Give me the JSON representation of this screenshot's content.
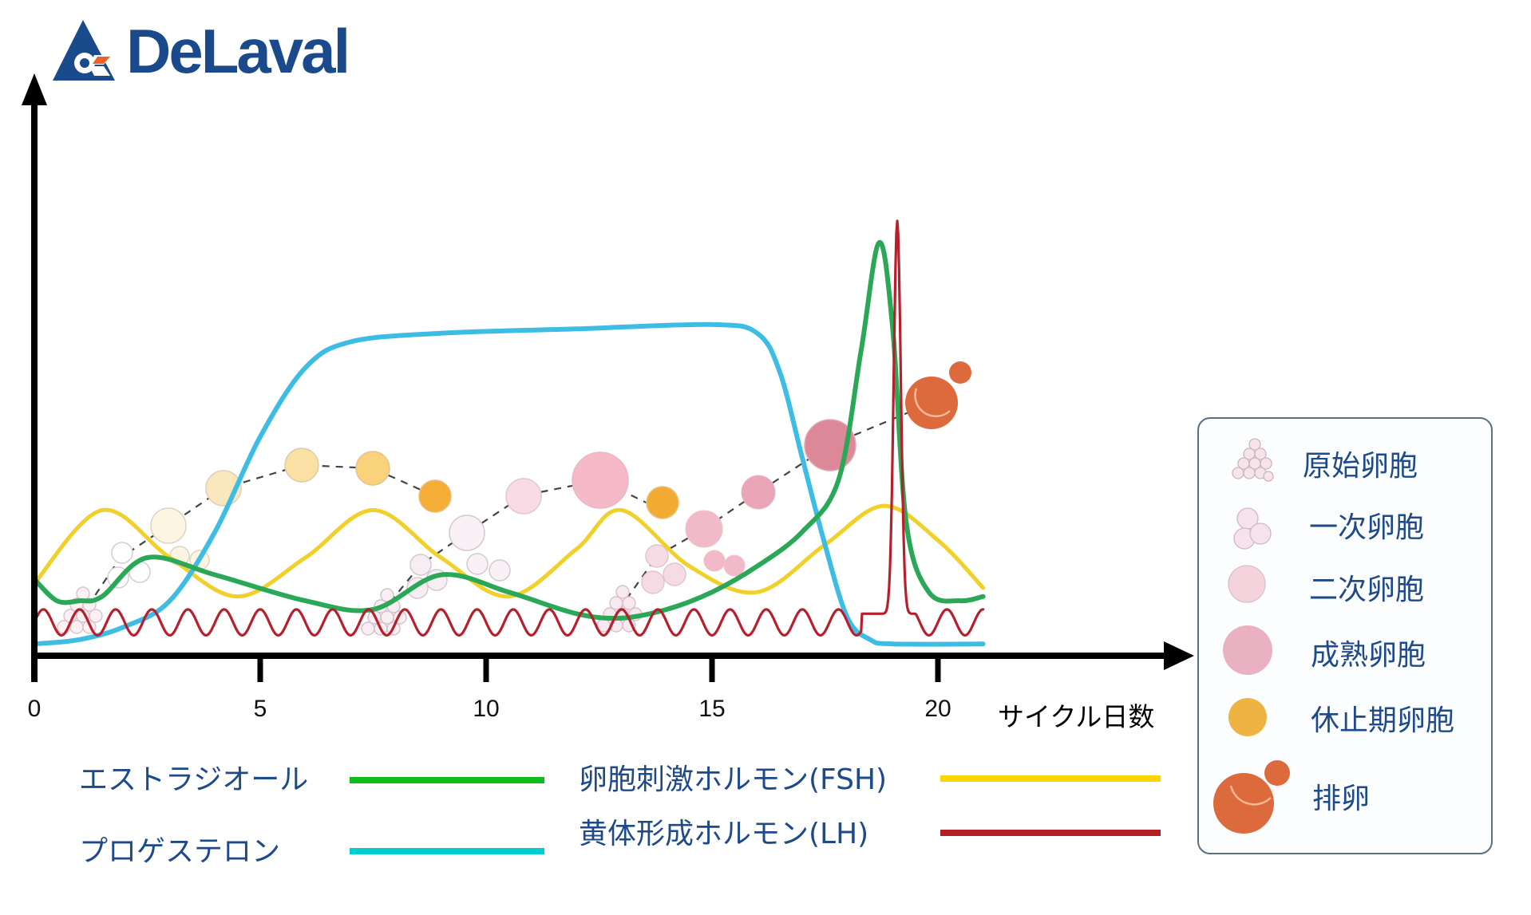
{
  "logo": {
    "text": "DeLaval",
    "brand_color": "#1b4a8c",
    "accent_color": "#e8642a"
  },
  "chart_data": {
    "type": "line",
    "title": "",
    "xlabel": "サイクル日数",
    "ylabel": "",
    "xlim": [
      0,
      21
    ],
    "x_ticks": [
      0,
      5,
      10,
      15,
      20
    ],
    "x_tick_labels": [
      "0",
      "5",
      "10",
      "15",
      "20"
    ],
    "grid": false,
    "legend_position": "bottom",
    "series": [
      {
        "name": "エストラジオール",
        "color": "#14a84a",
        "description": "Low baseline with follicular-wave bumps, rising after day 15 to sharp peak near day 18.7, then falling",
        "x": [
          0,
          0.5,
          1.0,
          1.5,
          2.5,
          4,
          6,
          7.5,
          9,
          10.5,
          12,
          13,
          14,
          15,
          16,
          17,
          17.8,
          18.3,
          18.7,
          19.0,
          19.3,
          19.8,
          20.5,
          21
        ],
        "y": [
          0.17,
          0.12,
          0.12,
          0.13,
          0.22,
          0.18,
          0.12,
          0.1,
          0.18,
          0.14,
          0.09,
          0.08,
          0.1,
          0.14,
          0.2,
          0.28,
          0.4,
          0.7,
          0.95,
          0.75,
          0.3,
          0.14,
          0.12,
          0.13
        ]
      },
      {
        "name": "プロゲステロン",
        "color": "#37b8e0",
        "description": "Sigmoid rise from day 1 to plateau ~day 7, flat until ~day 16, drops to baseline by day 18.5",
        "x": [
          0,
          1,
          2,
          3,
          4,
          5,
          6,
          7,
          9,
          12,
          15,
          16,
          16.5,
          17,
          17.5,
          18,
          18.5,
          19,
          21
        ],
        "y": [
          0.02,
          0.03,
          0.06,
          0.12,
          0.28,
          0.5,
          0.66,
          0.72,
          0.74,
          0.75,
          0.76,
          0.74,
          0.65,
          0.45,
          0.25,
          0.08,
          0.03,
          0.02,
          0.02
        ]
      },
      {
        "name": "卵胞刺激ホルモン(FSH)",
        "color": "#f2cf1c",
        "description": "Four oscillating waves with peaks near days 1.5, 7.5, 13, 18.8",
        "x": [
          0,
          1.5,
          3,
          4.5,
          6,
          7.5,
          9,
          10.5,
          12,
          13,
          14.5,
          16,
          17.5,
          18.8,
          20,
          21
        ],
        "y": [
          0.16,
          0.33,
          0.22,
          0.13,
          0.22,
          0.33,
          0.22,
          0.13,
          0.24,
          0.33,
          0.2,
          0.14,
          0.25,
          0.34,
          0.26,
          0.15
        ]
      },
      {
        "name": "黄体形成ホルモン(LH)",
        "color": "#b0202a",
        "description": "Low pulsatile oscillation (~0.8 day period) with a sharp surge peaking at day 19.1",
        "baseline": 0.07,
        "amplitude": 0.03,
        "period_days": 0.8,
        "surge": {
          "x": 19.1,
          "peak": 1.0,
          "start": 18.3,
          "end": 19.5
        }
      }
    ],
    "follicle_markers": [
      {
        "type": "原始卵胞",
        "day": 1.0
      },
      {
        "type": "一次卵胞",
        "day": 2.3
      },
      {
        "type": "二次卵胞",
        "day": 3.0
      },
      {
        "type": "二次卵胞",
        "day": 4.2
      },
      {
        "type": "二次卵胞",
        "day": 5.9
      },
      {
        "type": "休止期卵胞",
        "day": 7.4
      },
      {
        "type": "休止期卵胞",
        "day": 8.9
      },
      {
        "type": "原始卵胞",
        "day": 7.7
      },
      {
        "type": "一次卵胞",
        "day": 8.6
      },
      {
        "type": "二次卵胞",
        "day": 9.6
      },
      {
        "type": "二次卵胞",
        "day": 10.8
      },
      {
        "type": "成熟卵胞",
        "day": 12.5
      },
      {
        "type": "休止期卵胞",
        "day": 13.9
      },
      {
        "type": "原始卵胞",
        "day": 12.9
      },
      {
        "type": "一次卵胞",
        "day": 13.9
      },
      {
        "type": "二次卵胞",
        "day": 14.8
      },
      {
        "type": "成熟卵胞",
        "day": 15.9
      },
      {
        "type": "成熟卵胞",
        "day": 17.6
      },
      {
        "type": "排卵",
        "day": 19.9
      }
    ]
  },
  "axis": {
    "x_tick_labels": [
      "0",
      "5",
      "10",
      "15",
      "20"
    ],
    "x_title": "サイクル日数"
  },
  "hormone_legend": [
    {
      "label": "エストラジオール",
      "color": "#0fbd1a"
    },
    {
      "label": "プロゲステロン",
      "color": "#00cdd2"
    },
    {
      "label": "卵胞刺激ホルモン(FSH)",
      "color": "#ffd500"
    },
    {
      "label": "黄体形成ホルモン(LH)",
      "color": "#b21f24"
    }
  ],
  "follicle_legend": [
    {
      "label": "原始卵胞",
      "icon": "primordial-follicle-icon",
      "color": "#f6e4ea"
    },
    {
      "label": "一次卵胞",
      "icon": "primary-follicle-icon",
      "color": "#f6e2ea"
    },
    {
      "label": "二次卵胞",
      "icon": "secondary-follicle-icon",
      "color": "#f4d3dc"
    },
    {
      "label": "成熟卵胞",
      "icon": "mature-follicle-icon",
      "color": "#e9b1c1"
    },
    {
      "label": "休止期卵胞",
      "icon": "resting-follicle-icon",
      "color": "#edb443"
    },
    {
      "label": "排卵",
      "icon": "ovulation-icon",
      "color": "#dc6a3c"
    }
  ]
}
